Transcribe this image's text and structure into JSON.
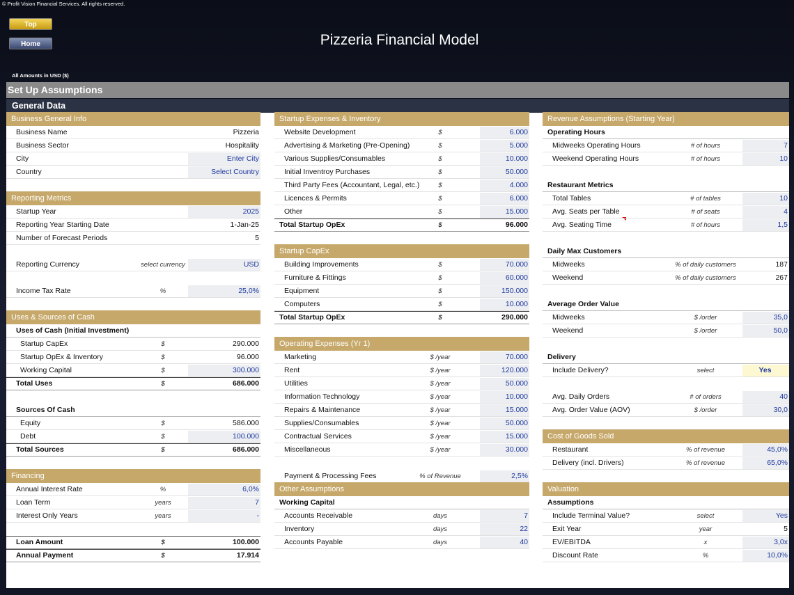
{
  "copyright": "© Profit Vision Financial Services. All rights reserved.",
  "buttons": [
    "Top",
    "Home"
  ],
  "title": "Pizzeria Financial Model",
  "amounts": "All Amounts in  USD ($)",
  "page_heading": "Set Up Assumptions",
  "subheading": "General Data",
  "columns": [
    [
      {
        "title": "Business General Info",
        "rows": [
          {
            "label": "Business Name",
            "value": "Pizzeria"
          },
          {
            "label": "Business Sector",
            "value": "Hospitality"
          },
          {
            "label": "City",
            "value": "Enter City",
            "input": true
          },
          {
            "label": "Country",
            "value": "Select Country",
            "input": true
          }
        ]
      },
      {
        "title": "Reporting Metrics",
        "rows": [
          {
            "label": "Startup Year",
            "value": "2025",
            "input": true
          },
          {
            "label": "Reporting Year Starting Date",
            "value": "1-Jan-25"
          },
          {
            "label": "Number of Forecast Periods",
            "value": "5"
          },
          {
            "label": "Reporting Currency",
            "unit": "select currency",
            "value": "USD",
            "input": true
          },
          {
            "label": "Income Tax Rate",
            "unit": "%",
            "value": "25,0%",
            "input": true
          }
        ]
      },
      {
        "title": "Uses & Sources of Cash",
        "rows": [
          {
            "label": "Uses of Cash (Initial Investment)",
            "heading": true
          },
          {
            "label": "Startup CapEx",
            "unit": "$",
            "value": "290.000"
          },
          {
            "label": "Startup OpEx & Inventory",
            "unit": "$",
            "value": "96.000"
          },
          {
            "label": "Working Capital",
            "unit": "$",
            "value": "300.000",
            "input": true
          },
          {
            "label": "Total Uses",
            "unit": "$",
            "value": "686.000",
            "total": true
          },
          {
            "label": "Sources Of Cash",
            "heading": true
          },
          {
            "label": "Equity",
            "unit": "$",
            "value": "586.000"
          },
          {
            "label": "Debt",
            "unit": "$",
            "value": "100.000",
            "input": true
          },
          {
            "label": "Total Sources",
            "unit": "$",
            "value": "686.000",
            "total": true
          }
        ]
      },
      {
        "title": "Financing",
        "rows": [
          {
            "label": "Annual Interest Rate",
            "unit": "%",
            "value": "6,0%",
            "input": true
          },
          {
            "label": "Loan Term",
            "unit": "years",
            "value": "7",
            "input": true
          },
          {
            "label": "Interest Only Years",
            "unit": "years",
            "value": "-",
            "input": true
          },
          {
            "label": "Loan Amount",
            "unit": "$",
            "value": "100.000",
            "total": true
          },
          {
            "label": "Annual Payment",
            "unit": "$",
            "value": "17.914",
            "total": true
          }
        ]
      }
    ],
    [
      {
        "title": "Startup Expenses & Inventory",
        "rows": [
          {
            "label": "Website Development",
            "unit": "$",
            "value": "6.000",
            "input": true
          },
          {
            "label": "Advertising & Marketing (Pre-Opening)",
            "unit": "$",
            "value": "5.000",
            "input": true
          },
          {
            "label": "Various Supplies/Consumables",
            "unit": "$",
            "value": "10.000",
            "input": true
          },
          {
            "label": "Initial Inventroy Purchases",
            "unit": "$",
            "value": "50.000",
            "input": true
          },
          {
            "label": "Third Party Fees (Accountant, Legal, etc.)",
            "unit": "$",
            "value": "4.000",
            "input": true
          },
          {
            "label": "Licences & Permits",
            "unit": "$",
            "value": "6.000",
            "input": true
          },
          {
            "label": "Other",
            "unit": "$",
            "value": "15.000",
            "input": true
          },
          {
            "label": "Total Startup OpEx",
            "unit": "$",
            "value": "96.000",
            "total": true
          }
        ]
      },
      {
        "title": "Startup CapEx",
        "rows": [
          {
            "label": "Building Improvements",
            "unit": "$",
            "value": "70.000",
            "input": true
          },
          {
            "label": "Furniture & Fittings",
            "unit": "$",
            "value": "60.000",
            "input": true
          },
          {
            "label": "Equipment",
            "unit": "$",
            "value": "150.000",
            "input": true
          },
          {
            "label": "Computers",
            "unit": "$",
            "value": "10.000",
            "input": true
          },
          {
            "label": "Total Startup OpEx",
            "unit": "$",
            "value": "290.000",
            "total": true
          }
        ]
      },
      {
        "title": "Operating Expenses (Yr 1)",
        "rows": [
          {
            "label": "Marketing",
            "unit": "$ /year",
            "value": "70.000",
            "input": true
          },
          {
            "label": "Rent",
            "unit": "$ /year",
            "value": "120.000",
            "input": true
          },
          {
            "label": "Utilities",
            "unit": "$ /year",
            "value": "50.000",
            "input": true
          },
          {
            "label": "Information Technology",
            "unit": "$ /year",
            "value": "10.000",
            "input": true
          },
          {
            "label": "Repairs & Maintenance",
            "unit": "$ /year",
            "value": "15.000",
            "input": true
          },
          {
            "label": "Supplies/Consumables",
            "unit": "$ /year",
            "value": "50.000",
            "input": true
          },
          {
            "label": "Contractual Services",
            "unit": "$ /year",
            "value": "15.000",
            "input": true
          },
          {
            "label": "Miscellaneous",
            "unit": "$ /year",
            "value": "30.000",
            "input": true
          },
          {
            "label": "Payment & Processing Fees",
            "unit": "% of Revenue",
            "value": "2,5%",
            "input": true
          }
        ]
      },
      {
        "title": "Other Assumptions",
        "rows": [
          {
            "label": "Working Capital",
            "heading": true
          },
          {
            "label": "Accounts Receivable",
            "unit": "days",
            "value": "7",
            "input": true
          },
          {
            "label": "Inventory",
            "unit": "days",
            "value": "22",
            "input": true
          },
          {
            "label": "Accounts Payable",
            "unit": "days",
            "value": "40",
            "input": true
          }
        ]
      }
    ],
    [
      {
        "title": "Revenue Assumptions (Starting Year)",
        "rows": [
          {
            "label": "Operating Hours",
            "heading": true
          },
          {
            "label": "Midweeks Operating Hours",
            "unit": "# of hours",
            "value": "7",
            "input": true
          },
          {
            "label": "Weekend Operating Hours",
            "unit": "# of hours",
            "value": "10",
            "input": true
          },
          {
            "label": "Restaurant Metrics",
            "heading": true
          },
          {
            "label": "Total Tables",
            "unit": "# of tables",
            "value": "10",
            "input": true
          },
          {
            "label": "Avg. Seats per Table",
            "unit": "# of seats",
            "value": "4",
            "input": true
          },
          {
            "label": "Avg. Seating Time",
            "unit": "# of hours",
            "value": "1,5",
            "input": true
          },
          {
            "label": "Daily Max Customers",
            "heading": true
          },
          {
            "label": "Midweeks",
            "unit": "% of daily customers",
            "value": "187"
          },
          {
            "label": "Weekend",
            "unit": "% of daily customers",
            "value": "267"
          },
          {
            "label": "Average Order Value",
            "heading": true
          },
          {
            "label": "Midweeks",
            "unit": "$ /order",
            "value": "35,0",
            "input": true
          },
          {
            "label": "Weekend",
            "unit": "$ /order",
            "value": "50,0",
            "input": true
          },
          {
            "label": "Delivery",
            "heading": true
          },
          {
            "label": "Include Delivery?",
            "unit": "select",
            "value": "Yes",
            "highlight": true
          },
          {
            "label": "Avg. Daily Orders",
            "unit": "# of orders",
            "value": "40",
            "input": true
          },
          {
            "label": "Avg. Order Value (AOV)",
            "unit": "$ /order",
            "value": "30,0",
            "input": true
          }
        ]
      },
      {
        "title": "Cost of Goods Sold",
        "rows": [
          {
            "label": "Restaurant",
            "unit": "% of revenue",
            "value": "45,0%",
            "input": true
          },
          {
            "label": "Delivery (incl. Drivers)",
            "unit": "% of revenue",
            "value": "65,0%",
            "input": true
          }
        ]
      },
      {
        "title": "Valuation",
        "rows": [
          {
            "label": "Assumptions",
            "heading": true
          },
          {
            "label": "Include Terminal Value?",
            "unit": "select",
            "value": "Yes",
            "input": true
          },
          {
            "label": "Exit Year",
            "unit": "year",
            "value": "5"
          },
          {
            "label": "EV/EBITDA",
            "unit": "x",
            "value": "3,0x",
            "input": true
          },
          {
            "label": "Discount Rate",
            "unit": "%",
            "value": "10,0%",
            "input": true
          }
        ]
      }
    ]
  ]
}
